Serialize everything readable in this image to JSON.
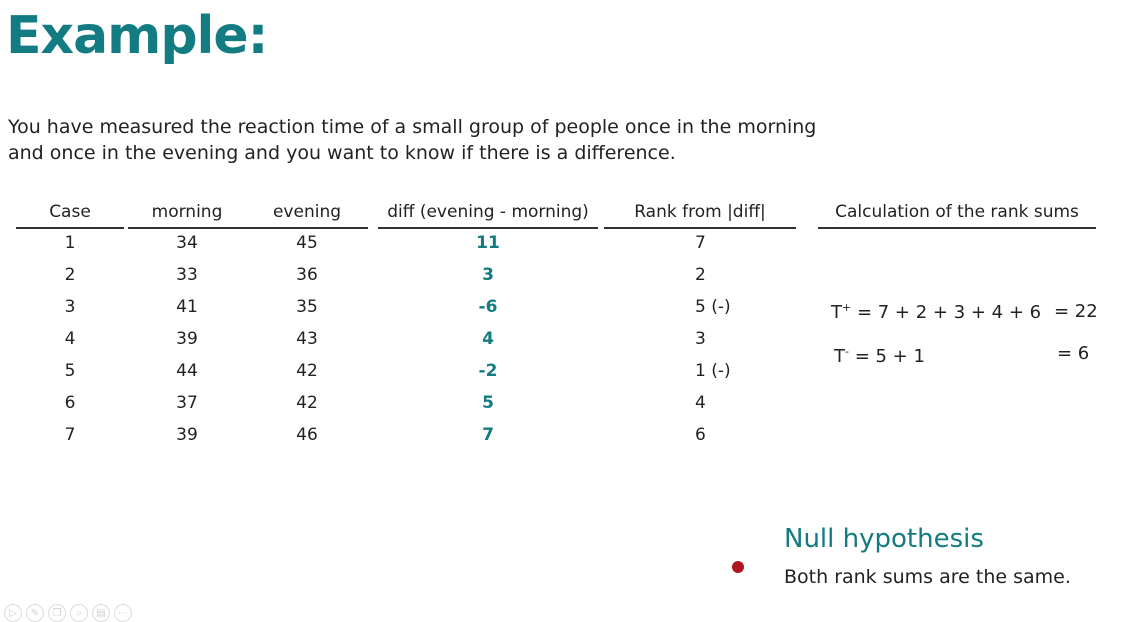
{
  "title": "Example:",
  "intro": {
    "line1": "You have measured the reaction time of a small group of people once in the morning",
    "line2": "and once in the evening and you want to know if there is a difference."
  },
  "table": {
    "headers": {
      "case": "Case",
      "morning": "morning",
      "evening": "evening",
      "diff": "diff (evening - morning)",
      "rank": "Rank from |diff|",
      "calc": "Calculation of the rank sums"
    },
    "rows": [
      {
        "case": "1",
        "morning": "34",
        "evening": "45",
        "diff": "11",
        "rank": "7"
      },
      {
        "case": "2",
        "morning": "33",
        "evening": "36",
        "diff": "3",
        "rank": "2"
      },
      {
        "case": "3",
        "morning": "41",
        "evening": "35",
        "diff": "-6",
        "rank": "5 (-)"
      },
      {
        "case": "4",
        "morning": "39",
        "evening": "43",
        "diff": "4",
        "rank": "3"
      },
      {
        "case": "5",
        "morning": "44",
        "evening": "42",
        "diff": "-2",
        "rank": "1  (-)"
      },
      {
        "case": "6",
        "morning": "37",
        "evening": "42",
        "diff": "5",
        "rank": "4"
      },
      {
        "case": "7",
        "morning": "39",
        "evening": "46",
        "diff": "7",
        "rank": "6"
      }
    ]
  },
  "calculation": {
    "t_plus_label": "T",
    "t_plus_sup": "+",
    "t_plus_expr": " = 7 + 2 + 3 + 4 + 6",
    "t_plus_result": "= 22",
    "t_minus_label": "T",
    "t_minus_sup": "-",
    "t_minus_expr": " = 5 + 1",
    "t_minus_result": "= 6"
  },
  "null_hypothesis": {
    "title": "Null hypothesis",
    "text": "Both rank sums are the same."
  },
  "toolbar": {
    "icons": [
      "play-icon",
      "pen-icon",
      "copy-icon",
      "zoom-icon",
      "subtitles-icon",
      "more-icon"
    ],
    "glyphs": [
      "▷",
      "✎",
      "❐",
      "⌕",
      "▤",
      "⋯"
    ]
  },
  "colors": {
    "accent": "#127c82",
    "pointer": "#b0151d"
  }
}
